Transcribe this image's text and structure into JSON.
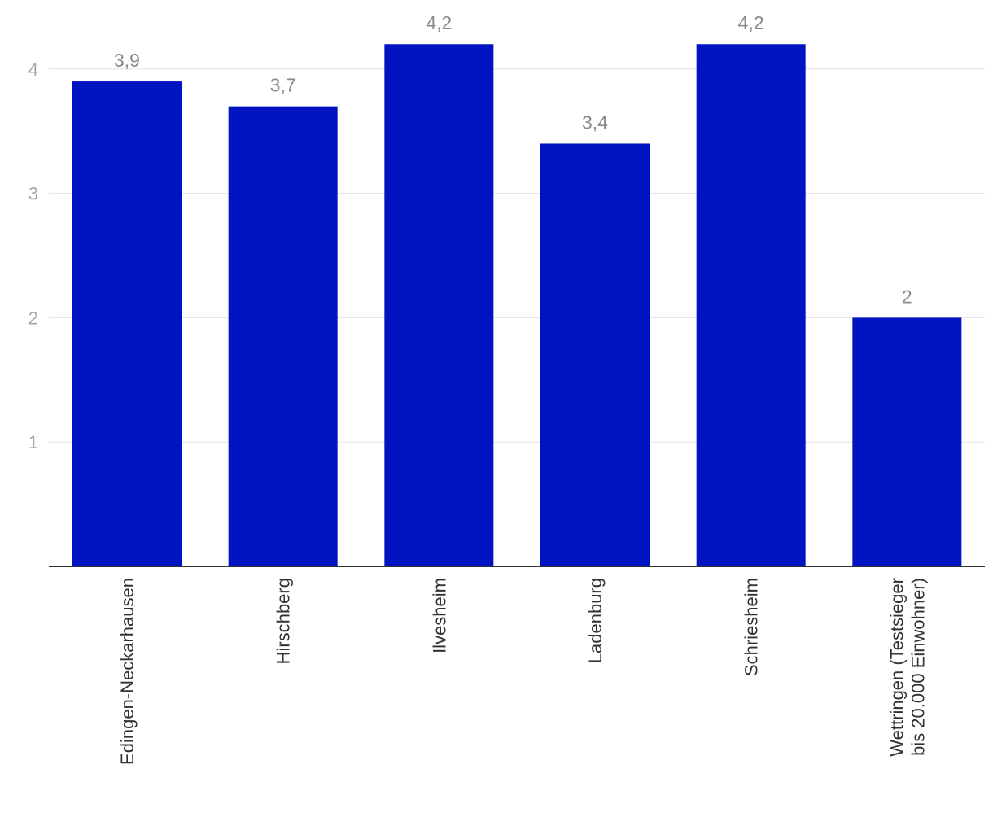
{
  "chart_data": {
    "type": "bar",
    "title": "",
    "xlabel": "",
    "ylabel": "",
    "categories": [
      [
        "Edingen-Neckarhausen"
      ],
      [
        "Hirschberg"
      ],
      [
        "Ilvesheim"
      ],
      [
        "Ladenburg"
      ],
      [
        "Schriesheim"
      ],
      [
        "Wettringen (Testsieger",
        "bis 20.000 Einwohner)"
      ]
    ],
    "values": [
      3.9,
      3.7,
      4.2,
      3.4,
      4.2,
      2
    ],
    "value_labels": [
      "3,9",
      "3,7",
      "4,2",
      "3,4",
      "4,2",
      "2"
    ],
    "yticks": [
      1,
      2,
      3,
      4
    ],
    "ytick_labels": [
      "1",
      "2",
      "3",
      "4"
    ],
    "ylim": [
      0,
      4.2
    ],
    "grid": true,
    "legend": "none",
    "bar_color": "#0014c1"
  }
}
